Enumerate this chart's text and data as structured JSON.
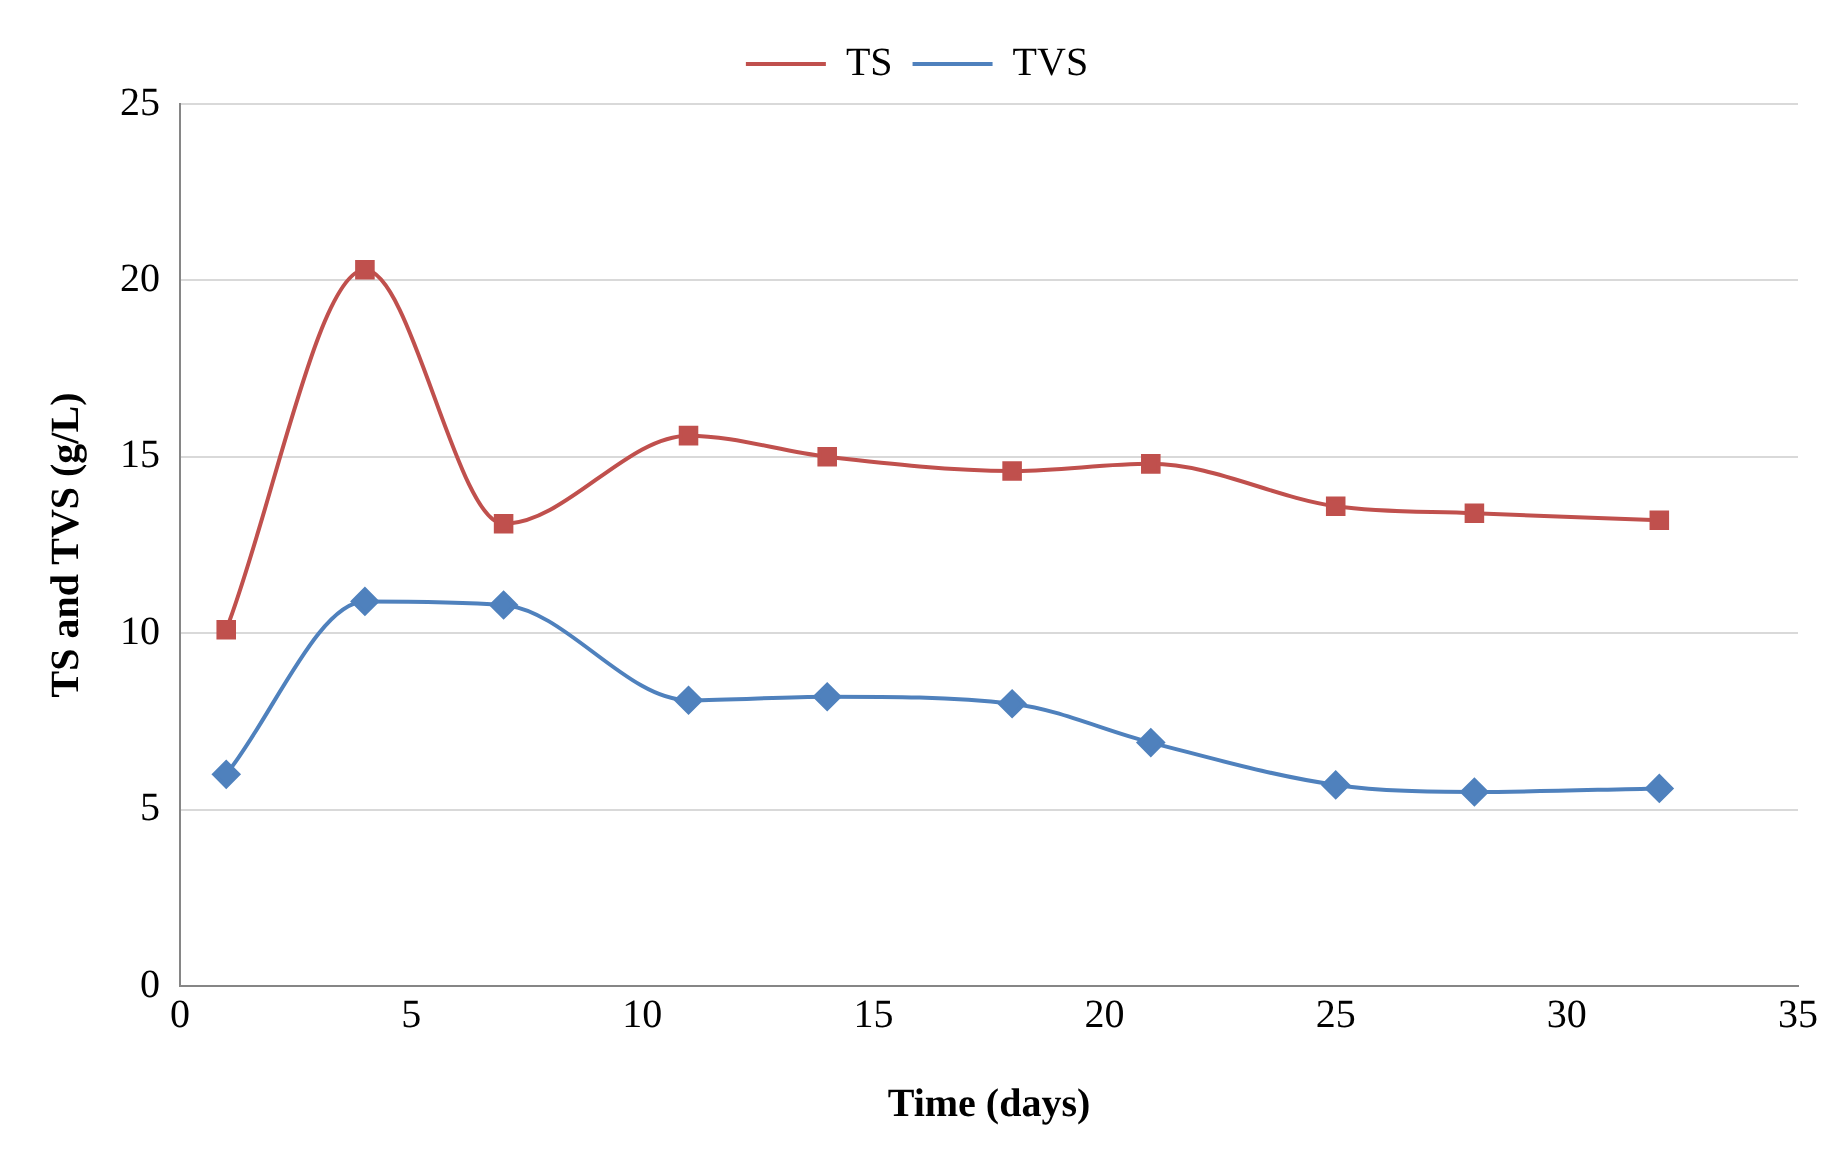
{
  "chart_data": {
    "type": "line",
    "xlabel": "Time (days)",
    "ylabel": "TS and TVS (g/L)",
    "x": [
      1,
      4,
      7,
      11,
      14,
      18,
      21,
      25,
      28,
      32
    ],
    "series": [
      {
        "name": "TS",
        "color": "#c0504d",
        "marker": "square",
        "values": [
          10.1,
          20.3,
          13.1,
          15.6,
          15.0,
          14.6,
          14.8,
          13.6,
          13.4,
          13.2
        ]
      },
      {
        "name": "TVS",
        "color": "#4f81bd",
        "marker": "diamond",
        "values": [
          6.0,
          10.9,
          10.8,
          8.1,
          8.2,
          8.0,
          6.9,
          5.7,
          5.5,
          5.6
        ]
      }
    ],
    "xlim": [
      0,
      35
    ],
    "xticks": [
      0,
      5,
      10,
      15,
      20,
      25,
      30,
      35
    ],
    "ylim": [
      0,
      25
    ],
    "yticks": [
      0,
      5,
      10,
      15,
      20,
      25
    ],
    "grid": "y",
    "legend": "top"
  }
}
